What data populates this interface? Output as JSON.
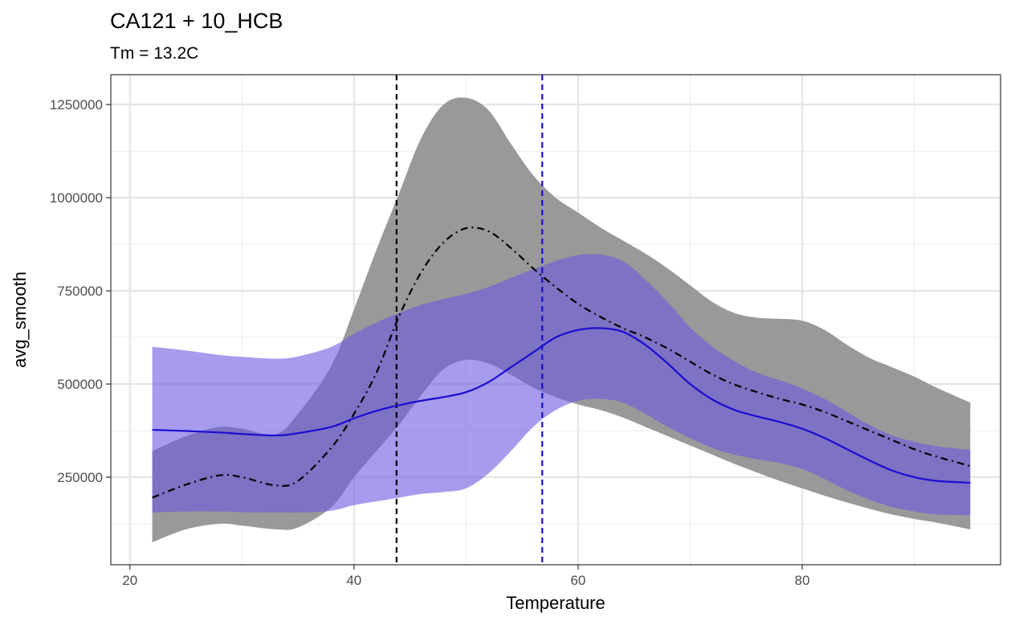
{
  "chart_data": {
    "type": "area",
    "title": "CA121 + 10_HCB",
    "subtitle": "Tm = 13.2C",
    "xlabel": "Temperature",
    "ylabel": "avg_smooth",
    "xlim": [
      18.3,
      97.7
    ],
    "ylim": [
      15000,
      1330000
    ],
    "x_ticks": [
      20,
      40,
      60,
      80
    ],
    "x_tick_labels": [
      "20",
      "40",
      "60",
      "80"
    ],
    "x_minor_ticks": [
      30,
      50,
      70,
      90
    ],
    "y_ticks": [
      250000,
      500000,
      750000,
      1000000,
      1250000
    ],
    "y_tick_labels": [
      "250000",
      "500000",
      "750000",
      "1000000",
      "1250000"
    ],
    "y_minor_ticks": [
      125000,
      375000,
      625000,
      875000,
      1125000
    ],
    "grid": true,
    "x": [
      22,
      25,
      28,
      30,
      33,
      35,
      38,
      40,
      42,
      44,
      46,
      48,
      50,
      52,
      54,
      56,
      58,
      60,
      62,
      64,
      66,
      68,
      70,
      72,
      74,
      76,
      78,
      80,
      82,
      84,
      86,
      88,
      90,
      92,
      95
    ],
    "series": [
      {
        "color": "#000000",
        "line_style": "dashdot",
        "values": [
          195000,
          230000,
          255000,
          250000,
          228000,
          240000,
          330000,
          420000,
          530000,
          680000,
          800000,
          880000,
          918000,
          910000,
          865000,
          810000,
          760000,
          715000,
          680000,
          650000,
          625000,
          595000,
          560000,
          525000,
          498000,
          478000,
          460000,
          445000,
          425000,
          400000,
          375000,
          350000,
          325000,
          305000,
          280000
        ],
        "band_lower": [
          75000,
          110000,
          125000,
          120000,
          110000,
          115000,
          170000,
          250000,
          320000,
          390000,
          470000,
          540000,
          565000,
          555000,
          525000,
          490000,
          465000,
          445000,
          430000,
          410000,
          385000,
          360000,
          335000,
          310000,
          285000,
          262000,
          240000,
          220000,
          200000,
          182000,
          165000,
          150000,
          138000,
          128000,
          110000
        ],
        "band_upper": [
          320000,
          360000,
          385000,
          380000,
          365000,
          420000,
          550000,
          700000,
          860000,
          1010000,
          1160000,
          1250000,
          1268000,
          1235000,
          1145000,
          1060000,
          1000000,
          960000,
          920000,
          885000,
          850000,
          810000,
          765000,
          720000,
          690000,
          678000,
          675000,
          670000,
          645000,
          605000,
          570000,
          545000,
          520000,
          490000,
          450000
        ],
        "band_color": "#999999"
      },
      {
        "color": "#1a0dd1",
        "line_style": "solid",
        "values": [
          377000,
          374000,
          370000,
          366000,
          362000,
          368000,
          385000,
          408000,
          428000,
          443000,
          455000,
          465000,
          478000,
          505000,
          545000,
          585000,
          625000,
          645000,
          650000,
          640000,
          605000,
          555000,
          500000,
          458000,
          430000,
          413000,
          398000,
          380000,
          355000,
          325000,
          295000,
          268000,
          250000,
          240000,
          235000
        ],
        "band_lower": [
          155000,
          158000,
          158000,
          156000,
          155000,
          155000,
          160000,
          175000,
          185000,
          195000,
          205000,
          210000,
          220000,
          260000,
          320000,
          385000,
          430000,
          455000,
          460000,
          450000,
          420000,
          385000,
          355000,
          328000,
          310000,
          298000,
          288000,
          272000,
          245000,
          215000,
          190000,
          170000,
          158000,
          150000,
          148000
        ],
        "band_upper": [
          600000,
          590000,
          578000,
          573000,
          568000,
          574000,
          600000,
          635000,
          665000,
          690000,
          712000,
          728000,
          742000,
          760000,
          785000,
          808000,
          830000,
          846000,
          847000,
          830000,
          780000,
          720000,
          652000,
          600000,
          560000,
          530000,
          510000,
          488000,
          460000,
          425000,
          390000,
          362000,
          345000,
          333000,
          323000
        ],
        "band_color": "#6b58e0"
      }
    ],
    "vlines": [
      {
        "x": 43.8,
        "color": "#000000",
        "line_style": "dashed"
      },
      {
        "x": 56.8,
        "color": "#1a0dd1",
        "line_style": "dashed"
      }
    ]
  }
}
